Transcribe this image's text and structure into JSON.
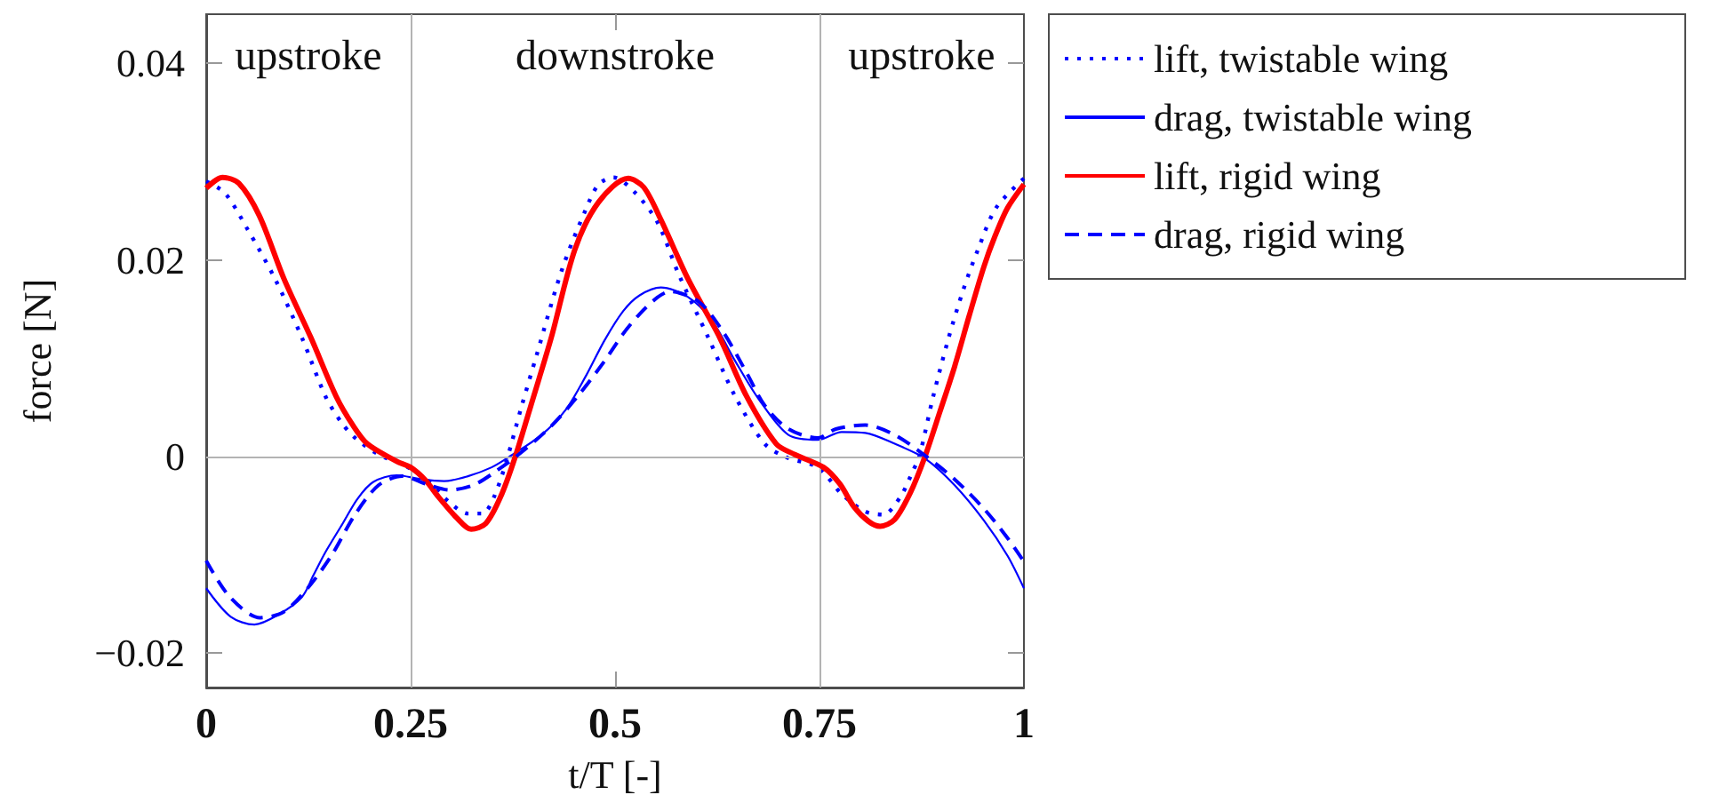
{
  "chart_data": {
    "type": "line",
    "xlabel": "t/T [-]",
    "ylabel": "force [N]",
    "xlim": [
      0,
      1
    ],
    "xticks": [
      0,
      0.25,
      0.5,
      0.75,
      1
    ],
    "ylim": [
      -0.0235,
      0.045
    ],
    "yticks": [
      {
        "value": -0.02,
        "label": "−0.02"
      },
      {
        "value": 0,
        "label": "0"
      },
      {
        "value": 0.02,
        "label": "0.02"
      },
      {
        "value": 0.04,
        "label": "0.04"
      }
    ],
    "grid": false,
    "legend": "top right",
    "marker": "none",
    "ref_lines": [
      {
        "axis": "x",
        "value": 0.25,
        "color": "#b3b3b3"
      },
      {
        "axis": "x",
        "value": 0.75,
        "color": "#b3b3b3"
      },
      {
        "axis": "y",
        "value": 0,
        "color": "#b3b3b3"
      }
    ],
    "annotations": [
      "upstroke",
      "downstroke",
      "upstroke"
    ],
    "series": [
      {
        "name": "lift, twistable wing",
        "color": "#0000ff",
        "line_style": "dotted",
        "x": [
          0,
          0.023,
          0.05,
          0.084,
          0.117,
          0.146,
          0.165,
          0.182,
          0.211,
          0.24,
          0.269,
          0.298,
          0.32,
          0.338,
          0.352,
          0.367,
          0.385,
          0.404,
          0.435,
          0.465,
          0.48,
          0.498,
          0.525,
          0.552,
          0.578,
          0.614,
          0.647,
          0.683,
          0.71,
          0.748,
          0.777,
          0.806,
          0.828,
          0.849,
          0.864,
          0.872,
          0.889,
          0.908,
          0.926,
          0.944,
          0.966,
          1
        ],
        "values": [
          0.028,
          0.0268,
          0.0232,
          0.0181,
          0.0121,
          0.0061,
          0.0035,
          0.0019,
          0.0002,
          -0.0008,
          -0.0023,
          -0.0047,
          -0.0058,
          -0.0058,
          -0.0041,
          -0.0005,
          0.0049,
          0.0103,
          0.019,
          0.0253,
          0.0277,
          0.0284,
          0.0268,
          0.0238,
          0.0185,
          0.0121,
          0.0061,
          0.0013,
          -0.0001,
          -0.0011,
          -0.0038,
          -0.0056,
          -0.0059,
          -0.0041,
          -0.0015,
          0,
          0.0061,
          0.0121,
          0.017,
          0.0211,
          0.0253,
          0.0283
        ]
      },
      {
        "name": "drag, twistable wing",
        "color": "#0000ff",
        "line_style": "solid",
        "x": [
          0,
          0.03,
          0.059,
          0.088,
          0.117,
          0.131,
          0.146,
          0.167,
          0.185,
          0.204,
          0.233,
          0.262,
          0.291,
          0.32,
          0.349,
          0.371,
          0.41,
          0.44,
          0.465,
          0.487,
          0.51,
          0.53,
          0.556,
          0.588,
          0.618,
          0.647,
          0.676,
          0.712,
          0.748,
          0.777,
          0.806,
          0.842,
          0.879,
          0.915,
          0.951,
          0.98,
          1
        ],
        "values": [
          -0.0134,
          -0.0163,
          -0.0171,
          -0.0161,
          -0.0143,
          -0.0121,
          -0.0097,
          -0.0068,
          -0.0043,
          -0.0026,
          -0.0019,
          -0.0023,
          -0.0025,
          -0.002,
          -0.0011,
          0,
          0.0022,
          0.0048,
          0.0083,
          0.0118,
          0.0148,
          0.0164,
          0.0172,
          0.0163,
          0.0139,
          0.0097,
          0.0058,
          0.0022,
          0.0017,
          0.0025,
          0.0024,
          0.0013,
          -0.0002,
          -0.0029,
          -0.0065,
          -0.0101,
          -0.0134
        ]
      },
      {
        "name": "lift, rigid wing",
        "color": "#ff0000",
        "line_style": "solid",
        "x": [
          0,
          0.02,
          0.04,
          0.065,
          0.095,
          0.128,
          0.159,
          0.18,
          0.197,
          0.233,
          0.25,
          0.268,
          0.284,
          0.306,
          0.324,
          0.342,
          0.36,
          0.378,
          0.4,
          0.422,
          0.451,
          0.48,
          0.516,
          0.535,
          0.556,
          0.589,
          0.628,
          0.661,
          0.697,
          0.72,
          0.755,
          0.775,
          0.792,
          0.81,
          0.824,
          0.842,
          0.861,
          0.879,
          0.897,
          0.915,
          0.933,
          0.951,
          0.965,
          0.98,
          1
        ],
        "values": [
          0.0273,
          0.0284,
          0.0278,
          0.0245,
          0.0181,
          0.0121,
          0.0061,
          0.0031,
          0.0013,
          -0.0005,
          -0.0011,
          -0.0024,
          -0.0041,
          -0.0062,
          -0.0074,
          -0.0068,
          -0.0041,
          0,
          0.006,
          0.0121,
          0.0211,
          0.0259,
          0.0283,
          0.0274,
          0.0241,
          0.0181,
          0.0121,
          0.0061,
          0.0013,
          0.0002,
          -0.0011,
          -0.0028,
          -0.0051,
          -0.0066,
          -0.0071,
          -0.0064,
          -0.0037,
          0,
          0.0045,
          0.0091,
          0.0143,
          0.0193,
          0.0225,
          0.0253,
          0.0277
        ]
      },
      {
        "name": "drag, rigid wing",
        "color": "#0000ff",
        "line_style": "dashed",
        "x": [
          0,
          0.029,
          0.066,
          0.095,
          0.124,
          0.153,
          0.182,
          0.211,
          0.24,
          0.269,
          0.298,
          0.327,
          0.356,
          0.385,
          0.422,
          0.455,
          0.487,
          0.51,
          0.53,
          0.552,
          0.567,
          0.603,
          0.632,
          0.661,
          0.683,
          0.712,
          0.748,
          0.77,
          0.806,
          0.842,
          0.879,
          0.915,
          0.951,
          0.98,
          1
        ],
        "values": [
          -0.0106,
          -0.0143,
          -0.0164,
          -0.0158,
          -0.0134,
          -0.0101,
          -0.0059,
          -0.0029,
          -0.002,
          -0.0028,
          -0.0034,
          -0.0029,
          -0.0014,
          0.0004,
          0.0031,
          0.0062,
          0.0097,
          0.0125,
          0.0145,
          0.0162,
          0.0168,
          0.0157,
          0.0127,
          0.0085,
          0.0052,
          0.0028,
          0.0019,
          0.0028,
          0.0032,
          0.0022,
          0.0001,
          -0.0023,
          -0.0053,
          -0.0083,
          -0.0107
        ]
      }
    ]
  }
}
